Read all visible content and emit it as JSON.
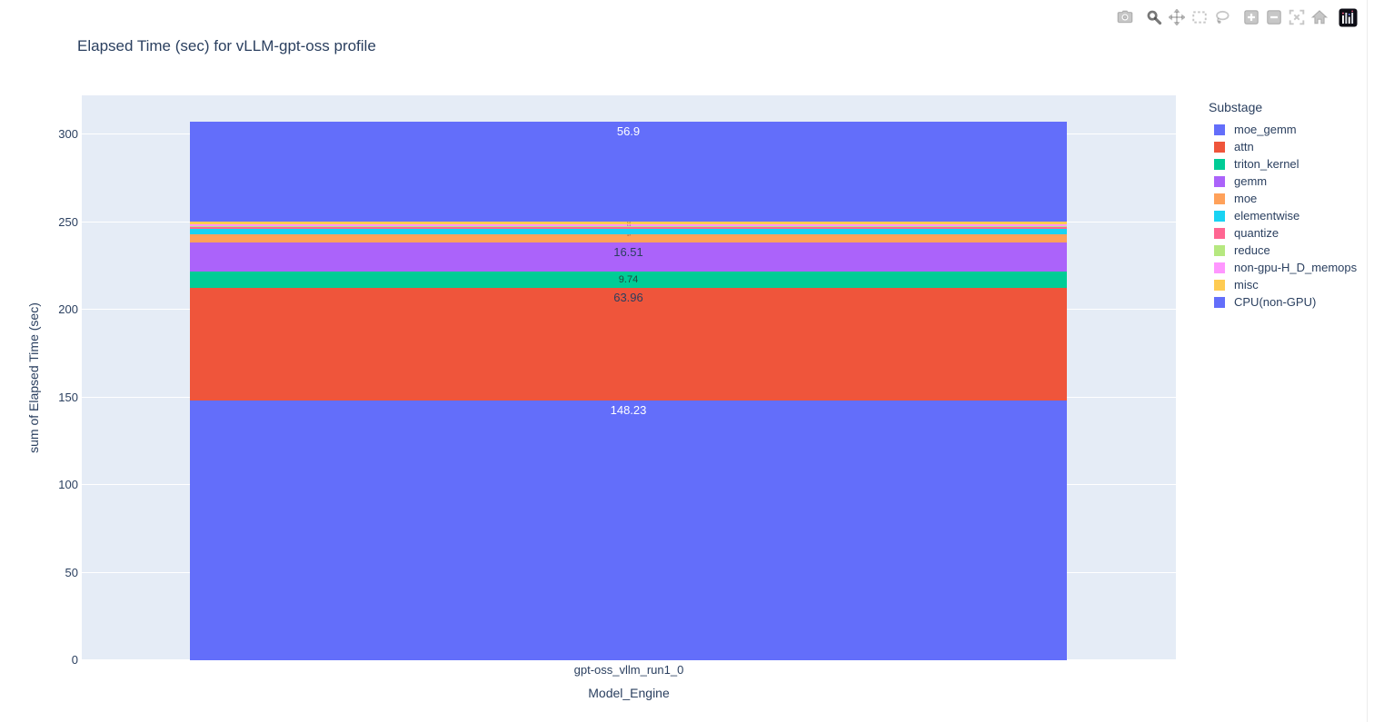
{
  "modebar": {
    "icons": [
      "camera-icon",
      "zoom-icon",
      "pan-icon",
      "box-select-icon",
      "lasso-select-icon",
      "zoom-in-icon",
      "zoom-out-icon",
      "autoscale-icon",
      "reset-axes-icon",
      "plotly-logo-icon"
    ],
    "active_icon": "zoom-icon"
  },
  "chart_data": {
    "type": "bar",
    "stacked": true,
    "title": "Elapsed Time (sec) for vLLM-gpt-oss profile",
    "xlabel": "Model_Engine",
    "ylabel": "sum of Elapsed Time (sec)",
    "categories": [
      "gpt-oss_vllm_run1_0"
    ],
    "ylim": [
      0,
      322
    ],
    "yticks": [
      0,
      50,
      100,
      150,
      200,
      250,
      300
    ],
    "grid": true,
    "plot_bg": "#E5ECF6",
    "legend_title": "Substage",
    "legend_position": "right",
    "stack_order_note": "series listed bottom-to-top; legend shows same order top-to-bottom",
    "series": [
      {
        "name": "moe_gemm",
        "value": 148.23,
        "color": "#636EFA",
        "label": "148.23",
        "label_style": "light"
      },
      {
        "name": "attn",
        "value": 63.96,
        "color": "#EF553B",
        "label": "63.96",
        "label_style": "dark"
      },
      {
        "name": "triton_kernel",
        "value": 9.74,
        "color": "#00CC96",
        "label": "9.74",
        "label_style": "dark-small"
      },
      {
        "name": "gemm",
        "value": 16.51,
        "color": "#AB63FA",
        "label": "16.51",
        "label_style": "dark"
      },
      {
        "name": "moe",
        "value": 4.7,
        "color": "#FFA15A",
        "label": "4.7",
        "label_style": "tiny"
      },
      {
        "name": "elementwise",
        "value": 3.1,
        "color": "#19D3F3",
        "label": "",
        "label_style": "none"
      },
      {
        "name": "quantize",
        "value": 1.0,
        "color": "#FF6692",
        "label": "",
        "label_style": "none"
      },
      {
        "name": "reduce",
        "value": 0.6,
        "color": "#B6E880",
        "label": "",
        "label_style": "none"
      },
      {
        "name": "non-gpu-H_D_memops",
        "value": 1.1,
        "color": "#FF97FF",
        "label": "1.1",
        "label_style": "tiny"
      },
      {
        "name": "misc",
        "value": 1.2,
        "color": "#FECB52",
        "label": "1.2",
        "label_style": "tiny"
      },
      {
        "name": "CPU(non-GPU)",
        "value": 56.9,
        "color": "#636EFA",
        "label": "56.9",
        "label_style": "light"
      }
    ]
  }
}
